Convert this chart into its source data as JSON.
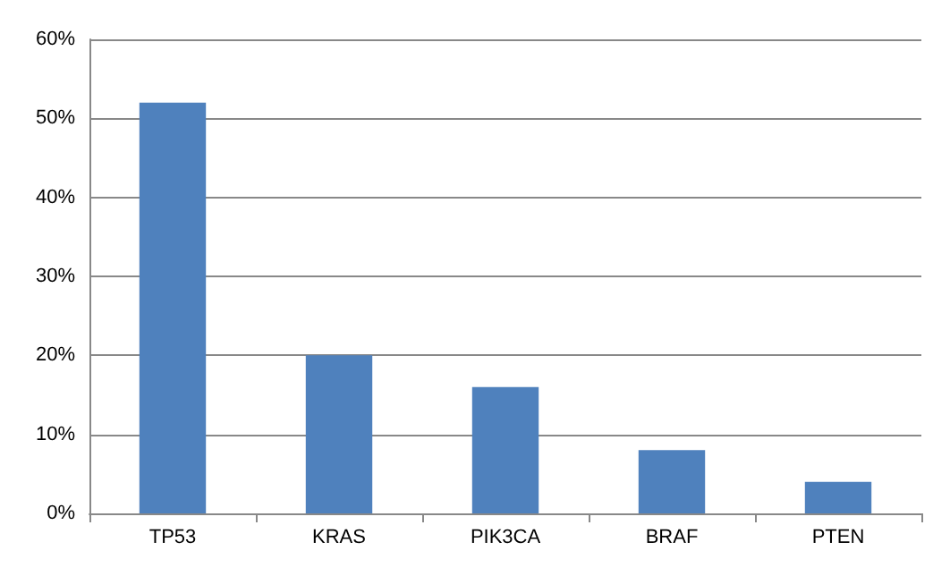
{
  "chart_data": {
    "type": "bar",
    "categories": [
      "TP53",
      "KRAS",
      "PIK3CA",
      "BRAF",
      "PTEN"
    ],
    "values": [
      52,
      20,
      16,
      8,
      4
    ],
    "color": "#4f81bd",
    "ylim": [
      0,
      60
    ],
    "yticks": [
      {
        "value": 0,
        "label": "0%"
      },
      {
        "value": 10,
        "label": "10%"
      },
      {
        "value": 20,
        "label": "20%"
      },
      {
        "value": 30,
        "label": "30%"
      },
      {
        "value": 40,
        "label": "40%"
      },
      {
        "value": 50,
        "label": "50%"
      },
      {
        "value": 60,
        "label": "60%"
      }
    ],
    "grid": "y"
  }
}
